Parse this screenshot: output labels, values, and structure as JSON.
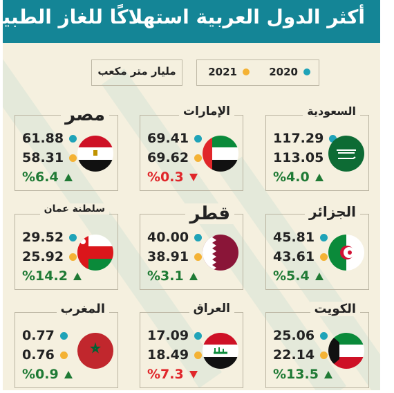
{
  "title": "أكثر الدول العربية استهلاكًا للغاز الطبيعي",
  "legend": {
    "y2020": "2020",
    "y2021": "2021",
    "unit": "مليار متر مكعب"
  },
  "colors": {
    "header": "#148596",
    "series_2020": "#1fa3b8",
    "series_2021": "#f4b234",
    "up": "#1f7a35",
    "down": "#e0262a"
  },
  "chart_data": {
    "type": "table",
    "title": "أكثر الدول العربية استهلاكًا للغاز الطبيعي",
    "unit": "مليار متر مكعب",
    "series": [
      {
        "name": "2020"
      },
      {
        "name": "2021"
      }
    ],
    "countries": [
      {
        "name": "السعودية",
        "v2020": "117.29",
        "v2021": "113.05",
        "change": "%4.0",
        "direction": "up",
        "flag": "saudi-flag-icon"
      },
      {
        "name": "الإمارات",
        "v2020": "69.41",
        "v2021": "69.62",
        "change": "%0.3",
        "direction": "down",
        "flag": "uae-flag-icon"
      },
      {
        "name": "مصر",
        "v2020": "61.88",
        "v2021": "58.31",
        "change": "%6.4",
        "direction": "up",
        "flag": "egypt-flag-icon"
      },
      {
        "name": "الجزائر",
        "v2020": "45.81",
        "v2021": "43.61",
        "change": "%5.4",
        "direction": "up",
        "flag": "algeria-flag-icon"
      },
      {
        "name": "قطر",
        "v2020": "40.00",
        "v2021": "38.91",
        "change": "%3.1",
        "direction": "up",
        "flag": "qatar-flag-icon"
      },
      {
        "name": "سلطنة عمان",
        "v2020": "29.52",
        "v2021": "25.92",
        "change": "%14.2",
        "direction": "up",
        "flag": "oman-flag-icon"
      },
      {
        "name": "الكويت",
        "v2020": "25.06",
        "v2021": "22.14",
        "change": "%13.5",
        "direction": "up",
        "flag": "kuwait-flag-icon"
      },
      {
        "name": "العراق",
        "v2020": "17.09",
        "v2021": "18.49",
        "change": "%7.3",
        "direction": "down",
        "flag": "iraq-flag-icon"
      },
      {
        "name": "المغرب",
        "v2020": "0.77",
        "v2021": "0.76",
        "change": "%0.9",
        "direction": "up",
        "flag": "morocco-flag-icon"
      }
    ]
  }
}
